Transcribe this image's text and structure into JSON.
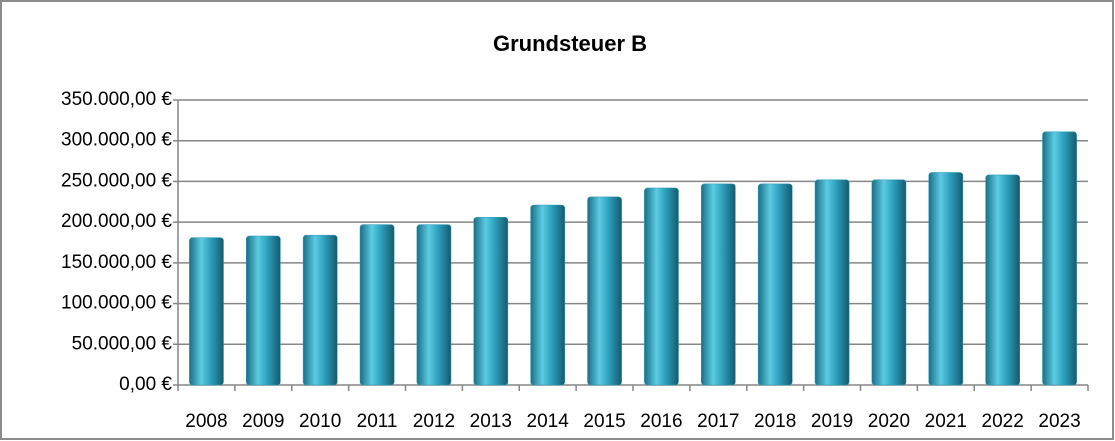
{
  "chart_data": {
    "type": "bar",
    "title": "Grundsteuer B",
    "categories": [
      "2008",
      "2009",
      "2010",
      "2011",
      "2012",
      "2013",
      "2014",
      "2015",
      "2016",
      "2017",
      "2018",
      "2019",
      "2020",
      "2021",
      "2022",
      "2023"
    ],
    "values": [
      181000,
      183000,
      184000,
      197000,
      197000,
      206000,
      221000,
      231000,
      242000,
      247000,
      247000,
      252000,
      252000,
      261000,
      258000,
      311000
    ],
    "color": "#2a9bb8",
    "ylim": [
      0,
      350000
    ],
    "yticks": [
      {
        "value": 0,
        "label": "0,00 €"
      },
      {
        "value": 50000,
        "label": "50.000,00 €"
      },
      {
        "value": 100000,
        "label": "100.000,00 €"
      },
      {
        "value": 150000,
        "label": "150.000,00 €"
      },
      {
        "value": 200000,
        "label": "200.000,00 €"
      },
      {
        "value": 250000,
        "label": "250.000,00 €"
      },
      {
        "value": 300000,
        "label": "300.000,00 €"
      },
      {
        "value": 350000,
        "label": "350.000,00 €"
      }
    ],
    "grid": true
  }
}
